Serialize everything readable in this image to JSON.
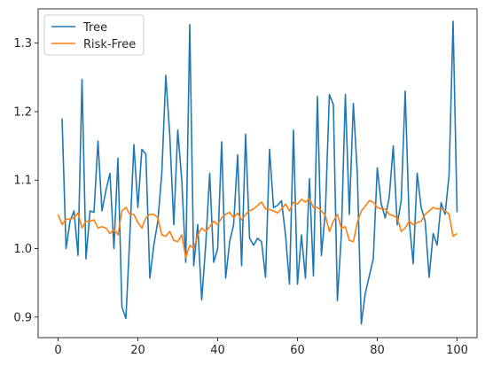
{
  "chart_data": {
    "type": "line",
    "title": "",
    "xlabel": "",
    "ylabel": "",
    "xlim": [
      -5,
      105
    ],
    "ylim": [
      0.87,
      1.35
    ],
    "xticks": [
      0,
      20,
      40,
      60,
      80,
      100
    ],
    "yticks": [
      0.9,
      1.0,
      1.1,
      1.2,
      1.3
    ],
    "grid": false,
    "legend": "upper left",
    "series": [
      {
        "name": "Tree",
        "color": "#1f77b4",
        "x": [
          1,
          2,
          3,
          4,
          5,
          6,
          7,
          8,
          9,
          10,
          11,
          12,
          13,
          14,
          15,
          16,
          17,
          18,
          19,
          20,
          21,
          22,
          23,
          24,
          25,
          26,
          27,
          28,
          29,
          30,
          31,
          32,
          33,
          34,
          35,
          36,
          37,
          38,
          39,
          40,
          41,
          42,
          43,
          44,
          45,
          46,
          47,
          48,
          49,
          50,
          51,
          52,
          53,
          54,
          55,
          56,
          57,
          58,
          59,
          60,
          61,
          62,
          63,
          64,
          65,
          66,
          67,
          68,
          69,
          70,
          71,
          72,
          73,
          74,
          75,
          76,
          77,
          78,
          79,
          80,
          81,
          82,
          83,
          84,
          85,
          86,
          87,
          88,
          89,
          90,
          91,
          92,
          93,
          94,
          95,
          96,
          97,
          98,
          99,
          100
        ],
        "values": [
          1.19,
          1.0,
          1.04,
          1.055,
          0.99,
          1.247,
          0.985,
          1.055,
          1.053,
          1.157,
          1.055,
          1.085,
          1.11,
          1.0,
          1.132,
          0.915,
          0.898,
          1.02,
          1.152,
          1.06,
          1.145,
          1.138,
          0.957,
          1.005,
          1.04,
          1.11,
          1.253,
          1.165,
          1.035,
          1.173,
          1.1,
          0.98,
          1.327,
          0.975,
          1.035,
          0.925,
          1.005,
          1.11,
          0.98,
          1.0,
          1.156,
          0.957,
          1.01,
          1.035,
          1.137,
          0.975,
          1.167,
          1.015,
          1.005,
          1.015,
          1.01,
          0.958,
          1.145,
          1.06,
          1.063,
          1.07,
          1.02,
          0.948,
          1.173,
          0.948,
          1.02,
          0.957,
          1.102,
          0.96,
          1.222,
          0.99,
          1.055,
          1.225,
          1.21,
          0.924,
          1.02,
          1.225,
          1.05,
          1.212,
          1.11,
          0.89,
          0.935,
          0.96,
          0.985,
          1.118,
          1.065,
          1.045,
          1.075,
          1.15,
          1.035,
          1.07,
          1.23,
          1.04,
          0.978,
          1.11,
          1.06,
          1.04,
          0.958,
          1.022,
          1.005,
          1.067,
          1.05,
          1.108,
          1.332,
          1.053
        ]
      },
      {
        "name": "Risk-Free",
        "color": "#ff7f0e",
        "x": [
          0,
          1,
          2,
          3,
          4,
          5,
          6,
          7,
          8,
          9,
          10,
          11,
          12,
          13,
          14,
          15,
          16,
          17,
          18,
          19,
          20,
          21,
          22,
          23,
          24,
          25,
          26,
          27,
          28,
          29,
          30,
          31,
          32,
          33,
          34,
          35,
          36,
          37,
          38,
          39,
          40,
          41,
          42,
          43,
          44,
          45,
          46,
          47,
          48,
          49,
          50,
          51,
          52,
          53,
          54,
          55,
          56,
          57,
          58,
          59,
          60,
          61,
          62,
          63,
          64,
          65,
          66,
          67,
          68,
          69,
          70,
          71,
          72,
          73,
          74,
          75,
          76,
          77,
          78,
          79,
          80,
          81,
          82,
          83,
          84,
          85,
          86,
          87,
          88,
          89,
          90,
          91,
          92,
          93,
          94,
          95,
          96,
          97,
          98,
          99,
          100
        ],
        "values": [
          1.05,
          1.035,
          1.043,
          1.043,
          1.045,
          1.052,
          1.03,
          1.04,
          1.04,
          1.042,
          1.03,
          1.032,
          1.03,
          1.022,
          1.028,
          1.02,
          1.055,
          1.06,
          1.05,
          1.05,
          1.038,
          1.03,
          1.045,
          1.05,
          1.05,
          1.045,
          1.02,
          1.018,
          1.025,
          1.012,
          1.01,
          1.02,
          0.987,
          1.005,
          1.0,
          1.02,
          1.03,
          1.025,
          1.032,
          1.04,
          1.035,
          1.045,
          1.05,
          1.053,
          1.045,
          1.052,
          1.042,
          1.05,
          1.055,
          1.058,
          1.063,
          1.068,
          1.058,
          1.057,
          1.055,
          1.052,
          1.058,
          1.065,
          1.055,
          1.068,
          1.065,
          1.072,
          1.068,
          1.073,
          1.06,
          1.06,
          1.055,
          1.048,
          1.025,
          1.04,
          1.05,
          1.03,
          1.032,
          1.012,
          1.01,
          1.038,
          1.055,
          1.062,
          1.07,
          1.068,
          1.06,
          1.058,
          1.058,
          1.05,
          1.048,
          1.045,
          1.025,
          1.03,
          1.04,
          1.035,
          1.038,
          1.04,
          1.05,
          1.055,
          1.06,
          1.058,
          1.058,
          1.055,
          1.05,
          1.018,
          1.022
        ]
      }
    ]
  }
}
